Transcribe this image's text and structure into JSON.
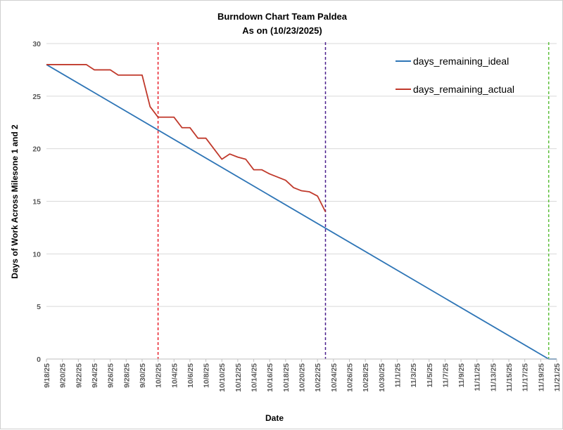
{
  "chart_data": {
    "type": "line",
    "title": "Burndown Chart Team Paldea",
    "subtitle": "As on (10/23/2025)",
    "xlabel": "Date",
    "ylabel": "Days of Work Across Milesone 1 and 2",
    "ylim": [
      0,
      30
    ],
    "yticks": [
      0,
      5,
      10,
      15,
      20,
      25,
      30
    ],
    "grid": "horizontal",
    "legend_position": "top-right",
    "xlim": [
      "9/18/25",
      "11/21/25"
    ],
    "xtick_labels": [
      "9/18/25",
      "9/20/25",
      "9/22/25",
      "9/24/25",
      "9/26/25",
      "9/28/25",
      "9/30/25",
      "10/2/25",
      "10/4/25",
      "10/6/25",
      "10/8/25",
      "10/10/25",
      "10/12/25",
      "10/14/25",
      "10/16/25",
      "10/18/25",
      "10/20/25",
      "10/22/25",
      "10/24/25",
      "10/26/25",
      "10/28/25",
      "10/30/25",
      "11/1/25",
      "11/3/25",
      "11/5/25",
      "11/7/25",
      "11/9/25",
      "11/11/25",
      "11/13/25",
      "11/15/25",
      "11/17/25",
      "11/19/25",
      "11/21/25"
    ],
    "series": [
      {
        "name": "days_remaining_ideal",
        "color": "#2e75b6",
        "points": [
          [
            "9/18/25",
            28
          ],
          [
            "11/20/25",
            0
          ],
          [
            "11/21/25",
            0
          ]
        ]
      },
      {
        "name": "days_remaining_actual",
        "color": "#c0392b",
        "points": [
          [
            "9/18/25",
            28
          ],
          [
            "9/19/25",
            28
          ],
          [
            "9/20/25",
            28
          ],
          [
            "9/21/25",
            28
          ],
          [
            "9/22/25",
            28
          ],
          [
            "9/23/25",
            28
          ],
          [
            "9/24/25",
            27.5
          ],
          [
            "9/25/25",
            27.5
          ],
          [
            "9/26/25",
            27.5
          ],
          [
            "9/27/25",
            27
          ],
          [
            "9/28/25",
            27
          ],
          [
            "9/29/25",
            27
          ],
          [
            "9/30/25",
            27
          ],
          [
            "10/1/25",
            24
          ],
          [
            "10/2/25",
            23
          ],
          [
            "10/3/25",
            23
          ],
          [
            "10/4/25",
            23
          ],
          [
            "10/5/25",
            22
          ],
          [
            "10/6/25",
            22
          ],
          [
            "10/7/25",
            21
          ],
          [
            "10/8/25",
            21
          ],
          [
            "10/9/25",
            20
          ],
          [
            "10/10/25",
            19
          ],
          [
            "10/11/25",
            19.5
          ],
          [
            "10/12/25",
            19.2
          ],
          [
            "10/13/25",
            19
          ],
          [
            "10/14/25",
            18
          ],
          [
            "10/15/25",
            18
          ],
          [
            "10/16/25",
            17.6
          ],
          [
            "10/17/25",
            17.3
          ],
          [
            "10/18/25",
            17
          ],
          [
            "10/19/25",
            16.3
          ],
          [
            "10/20/25",
            16
          ],
          [
            "10/21/25",
            15.9
          ],
          [
            "10/22/25",
            15.5
          ],
          [
            "10/23/25",
            14
          ]
        ]
      }
    ],
    "reference_lines": [
      {
        "x": "10/2/25",
        "color": "#e8202a",
        "style": "dashed"
      },
      {
        "x": "10/23/25",
        "color": "#4b1f8e",
        "style": "dashed"
      },
      {
        "x": "11/20/25",
        "color": "#5cbf3a",
        "style": "dashed"
      }
    ]
  }
}
